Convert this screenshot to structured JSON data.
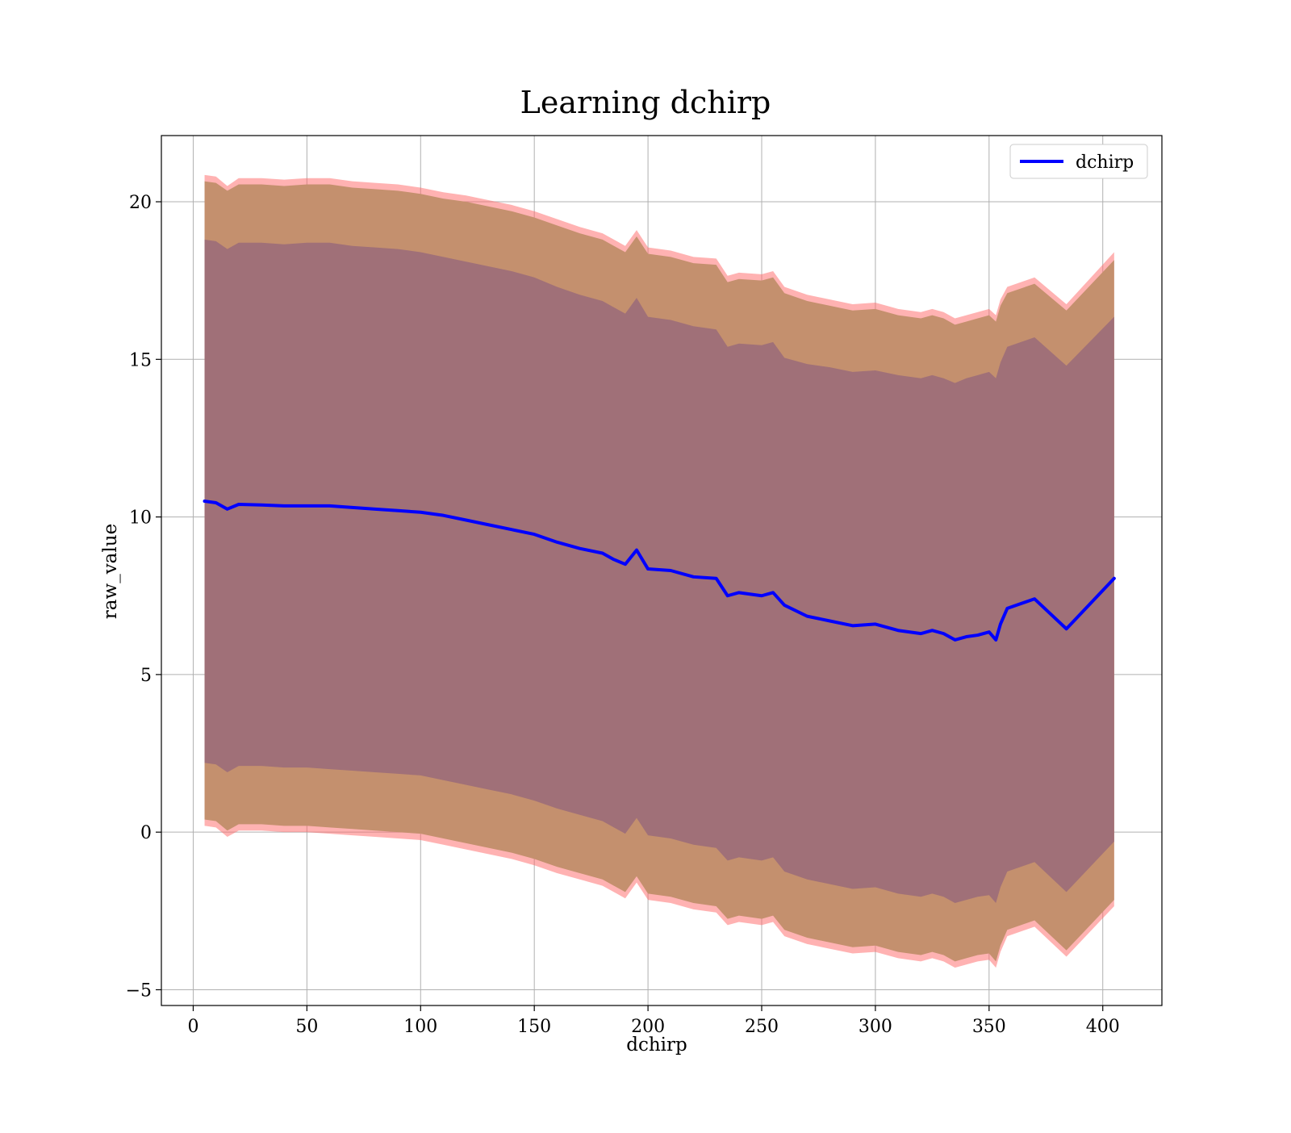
{
  "chart_data": {
    "type": "area",
    "title": "Learning dchirp",
    "xlabel": "dchirp",
    "ylabel": "raw_value",
    "xlim": [
      -14,
      426
    ],
    "ylim": [
      -5.5,
      22.1
    ],
    "xticks": [
      0,
      50,
      100,
      150,
      200,
      250,
      300,
      350,
      400
    ],
    "yticks": [
      -5,
      0,
      5,
      10,
      15,
      20
    ],
    "xtick_labels": [
      "0",
      "50",
      "100",
      "150",
      "200",
      "250",
      "300",
      "350",
      "400"
    ],
    "ytick_labels": [
      "−5",
      "0",
      "5",
      "10",
      "15",
      "20"
    ],
    "grid": true,
    "legend": {
      "position": "top-right",
      "entries": [
        {
          "label": "dchirp",
          "color": "#0000ff"
        }
      ]
    },
    "colors": {
      "line": "#0000ff",
      "outer_band": "#ff6666",
      "middle_band": "#c4906e",
      "inner_band": "#a07078"
    },
    "x": [
      5,
      10,
      15,
      20,
      30,
      40,
      50,
      60,
      70,
      80,
      90,
      100,
      110,
      120,
      130,
      140,
      150,
      160,
      170,
      180,
      185,
      190,
      195,
      200,
      210,
      220,
      230,
      235,
      240,
      250,
      255,
      260,
      270,
      280,
      290,
      300,
      310,
      320,
      325,
      330,
      335,
      340,
      345,
      350,
      353,
      355,
      358,
      370,
      384,
      405
    ],
    "series": [
      {
        "name": "dchirp",
        "values": [
          10.5,
          10.45,
          10.25,
          10.4,
          10.38,
          10.35,
          10.35,
          10.35,
          10.3,
          10.25,
          10.2,
          10.15,
          10.05,
          9.9,
          9.75,
          9.6,
          9.45,
          9.2,
          9.0,
          8.85,
          8.65,
          8.5,
          8.95,
          8.35,
          8.3,
          8.1,
          8.05,
          7.5,
          7.6,
          7.5,
          7.6,
          7.2,
          6.85,
          6.7,
          6.55,
          6.6,
          6.4,
          6.3,
          6.4,
          6.3,
          6.1,
          6.2,
          6.25,
          6.35,
          6.1,
          6.6,
          7.1,
          7.4,
          6.45,
          8.05
        ]
      }
    ],
    "bands": [
      {
        "level": "outer",
        "upper": [
          20.85,
          20.8,
          20.5,
          20.75,
          20.75,
          20.7,
          20.75,
          20.75,
          20.65,
          20.6,
          20.55,
          20.45,
          20.3,
          20.2,
          20.05,
          19.9,
          19.7,
          19.45,
          19.2,
          19.0,
          18.8,
          18.6,
          19.1,
          18.55,
          18.45,
          18.25,
          18.2,
          17.65,
          17.75,
          17.7,
          17.8,
          17.3,
          17.05,
          16.9,
          16.75,
          16.8,
          16.6,
          16.5,
          16.6,
          16.5,
          16.3,
          16.4,
          16.5,
          16.6,
          16.4,
          16.9,
          17.3,
          17.6,
          16.75,
          18.4
        ],
        "lower": [
          0.2,
          0.15,
          -0.15,
          0.05,
          0.05,
          0.0,
          0.0,
          -0.05,
          -0.1,
          -0.15,
          -0.2,
          -0.25,
          -0.4,
          -0.55,
          -0.7,
          -0.85,
          -1.05,
          -1.3,
          -1.5,
          -1.7,
          -1.9,
          -2.1,
          -1.6,
          -2.15,
          -2.25,
          -2.45,
          -2.55,
          -2.95,
          -2.85,
          -2.95,
          -2.85,
          -3.3,
          -3.55,
          -3.7,
          -3.85,
          -3.8,
          -4.0,
          -4.1,
          -4.0,
          -4.1,
          -4.3,
          -4.2,
          -4.1,
          -4.05,
          -4.3,
          -3.8,
          -3.3,
          -3.0,
          -3.95,
          -2.35
        ]
      },
      {
        "level": "middle",
        "upper": [
          20.65,
          20.6,
          20.35,
          20.55,
          20.55,
          20.5,
          20.55,
          20.55,
          20.45,
          20.4,
          20.35,
          20.25,
          20.1,
          20.0,
          19.85,
          19.7,
          19.5,
          19.25,
          19.0,
          18.8,
          18.6,
          18.4,
          18.9,
          18.35,
          18.25,
          18.05,
          18.0,
          17.45,
          17.55,
          17.5,
          17.6,
          17.1,
          16.85,
          16.7,
          16.55,
          16.6,
          16.4,
          16.3,
          16.4,
          16.3,
          16.1,
          16.2,
          16.3,
          16.4,
          16.2,
          16.7,
          17.1,
          17.4,
          16.55,
          18.15
        ],
        "lower": [
          0.4,
          0.35,
          0.05,
          0.25,
          0.25,
          0.2,
          0.2,
          0.15,
          0.1,
          0.05,
          0.0,
          -0.05,
          -0.2,
          -0.35,
          -0.5,
          -0.65,
          -0.85,
          -1.1,
          -1.3,
          -1.5,
          -1.7,
          -1.9,
          -1.4,
          -1.95,
          -2.05,
          -2.25,
          -2.35,
          -2.75,
          -2.65,
          -2.75,
          -2.65,
          -3.1,
          -3.35,
          -3.5,
          -3.65,
          -3.6,
          -3.8,
          -3.9,
          -3.8,
          -3.9,
          -4.1,
          -4.0,
          -3.9,
          -3.85,
          -4.1,
          -3.6,
          -3.1,
          -2.8,
          -3.75,
          -2.15
        ]
      },
      {
        "level": "inner",
        "upper": [
          18.8,
          18.75,
          18.5,
          18.7,
          18.7,
          18.65,
          18.7,
          18.7,
          18.6,
          18.55,
          18.5,
          18.4,
          18.25,
          18.1,
          17.95,
          17.8,
          17.6,
          17.3,
          17.05,
          16.85,
          16.65,
          16.45,
          16.95,
          16.35,
          16.25,
          16.05,
          15.95,
          15.4,
          15.5,
          15.45,
          15.55,
          15.05,
          14.85,
          14.75,
          14.6,
          14.65,
          14.5,
          14.4,
          14.5,
          14.4,
          14.25,
          14.4,
          14.5,
          14.6,
          14.4,
          14.9,
          15.4,
          15.7,
          14.8,
          16.35
        ],
        "lower": [
          2.2,
          2.15,
          1.9,
          2.1,
          2.1,
          2.05,
          2.05,
          2.0,
          1.95,
          1.9,
          1.85,
          1.8,
          1.65,
          1.5,
          1.35,
          1.2,
          1.0,
          0.75,
          0.55,
          0.35,
          0.15,
          -0.05,
          0.45,
          -0.1,
          -0.2,
          -0.4,
          -0.5,
          -0.9,
          -0.8,
          -0.9,
          -0.8,
          -1.25,
          -1.5,
          -1.65,
          -1.8,
          -1.75,
          -1.95,
          -2.05,
          -1.95,
          -2.05,
          -2.25,
          -2.15,
          -2.05,
          -2.0,
          -2.25,
          -1.75,
          -1.25,
          -0.95,
          -1.9,
          -0.3
        ]
      }
    ]
  }
}
